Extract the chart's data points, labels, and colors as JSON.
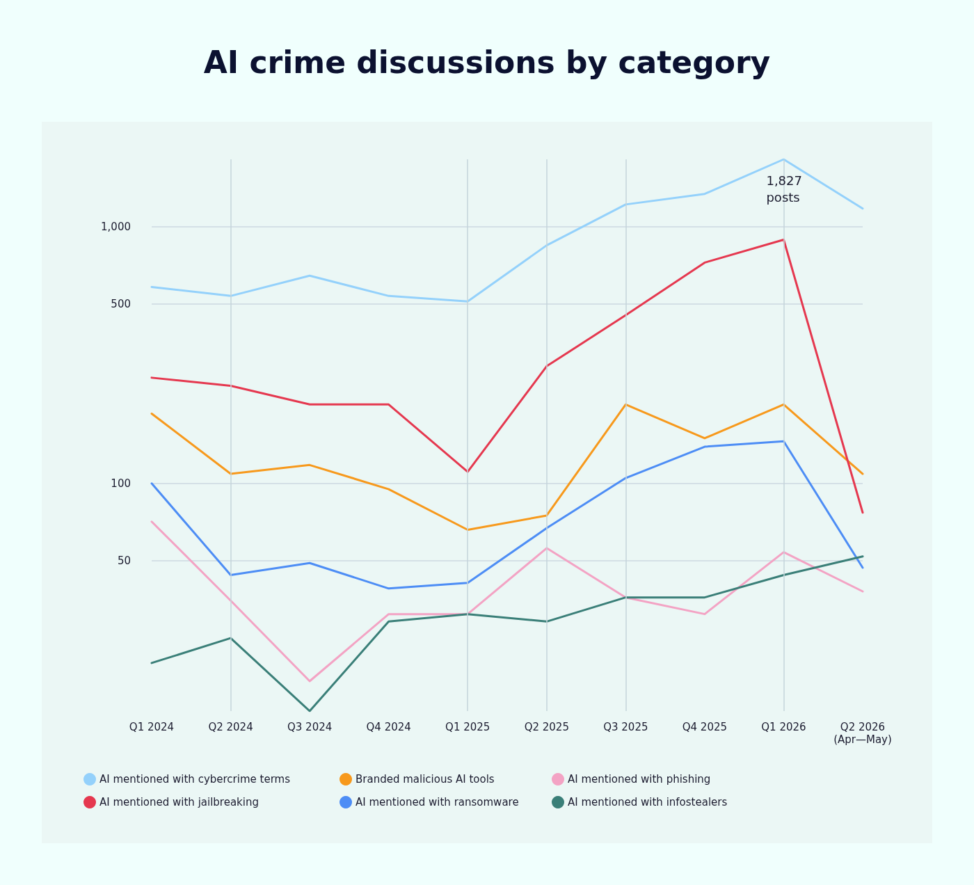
{
  "chart_data": {
    "type": "line",
    "title": "AI crime discussions by category",
    "categories": [
      "Q1 2024",
      "Q2 2024",
      "Q3 2024",
      "Q4 2024",
      "Q1 2025",
      "Q2 2025",
      "Q3 2025",
      "Q4 2025",
      "Q1 2026",
      "Q2 2026\n(Apr—May)"
    ],
    "series": [
      {
        "name": "AI mentioned with cybercrime terms",
        "color": "#94d1fb",
        "values": [
          582,
          537,
          644,
          537,
          511,
          845,
          1219,
          1340,
          1827,
          1175
        ]
      },
      {
        "name": "Branded malicious AI tools",
        "color": "#f7991c",
        "values": [
          187,
          109,
          118,
          95,
          66,
          75,
          203,
          150,
          203,
          109
        ]
      },
      {
        "name": "AI mentioned with phishing",
        "color": "#f3a3c4",
        "values": [
          71,
          35,
          17,
          31,
          31,
          56,
          36,
          31,
          54,
          38
        ]
      },
      {
        "name": "AI mentioned with jailbreaking",
        "color": "#e5384f",
        "values": [
          258,
          240,
          203,
          203,
          111,
          286,
          452,
          724,
          889,
          77
        ]
      },
      {
        "name": "AI mentioned with ransomware",
        "color": "#4d8df5",
        "values": [
          100,
          44,
          49,
          39,
          41,
          67,
          105,
          139,
          146,
          47
        ]
      },
      {
        "name": "AI mentioned with infostealers",
        "color": "#3a7f78",
        "values": [
          20,
          25,
          13,
          29,
          31,
          29,
          36,
          36,
          44,
          52
        ]
      }
    ],
    "log": true,
    "ylim": [
      13,
      1827
    ],
    "yticks": [
      50,
      100,
      500,
      {
        "value": 1000,
        "label": "1,000"
      }
    ],
    "grid": "y",
    "legend": "bottom",
    "marker": "none",
    "line_style": "solid",
    "ref_lines": [
      {
        "axis": "x",
        "value": "Q2 2024"
      },
      {
        "axis": "x",
        "value": "Q1 2025"
      },
      {
        "axis": "x",
        "value": "Q2 2025"
      },
      {
        "axis": "x",
        "value": "Q3 2025"
      },
      {
        "axis": "x",
        "value": "Q1 2026"
      }
    ],
    "annotations": [
      {
        "text": "1,827\nposts",
        "x": "Q1 2026",
        "y": 1827
      }
    ]
  }
}
